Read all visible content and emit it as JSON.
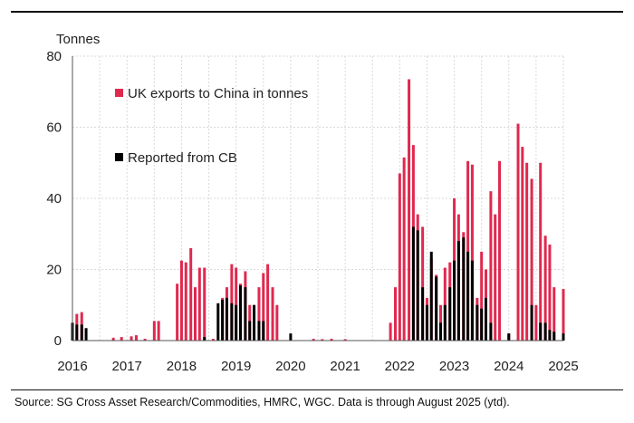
{
  "chart_data": {
    "type": "bar",
    "ylabel": "Tonnes",
    "ylim": [
      0,
      80
    ],
    "yticks": [
      "0",
      "20",
      "40",
      "60",
      "80"
    ],
    "xlim": [
      2016,
      2025
    ],
    "xticks": [
      "2016",
      "2017",
      "2018",
      "2019",
      "2020",
      "2021",
      "2022",
      "2023",
      "2024",
      "2025"
    ],
    "grid": true,
    "legend_position": "top-left",
    "series": [
      {
        "name": "UK exports to China in tonnes",
        "color": "#e0294f",
        "points": [
          {
            "x": 2016.08,
            "y": 7.5
          },
          {
            "x": 2016.17,
            "y": 8
          },
          {
            "x": 2016.75,
            "y": 0.8
          },
          {
            "x": 2016.9,
            "y": 1
          },
          {
            "x": 2017.08,
            "y": 1.2
          },
          {
            "x": 2017.17,
            "y": 1.5
          },
          {
            "x": 2017.33,
            "y": 0.5
          },
          {
            "x": 2017.5,
            "y": 5.5
          },
          {
            "x": 2017.58,
            "y": 5.5
          },
          {
            "x": 2017.92,
            "y": 16
          },
          {
            "x": 2018.0,
            "y": 22.5
          },
          {
            "x": 2018.08,
            "y": 22
          },
          {
            "x": 2018.17,
            "y": 26
          },
          {
            "x": 2018.25,
            "y": 15
          },
          {
            "x": 2018.33,
            "y": 20.5
          },
          {
            "x": 2018.42,
            "y": 20.5
          },
          {
            "x": 2018.58,
            "y": 0.5
          },
          {
            "x": 2018.75,
            "y": 12
          },
          {
            "x": 2018.83,
            "y": 15
          },
          {
            "x": 2018.92,
            "y": 21.5
          },
          {
            "x": 2019.0,
            "y": 20.5
          },
          {
            "x": 2019.08,
            "y": 16
          },
          {
            "x": 2019.17,
            "y": 19.5
          },
          {
            "x": 2019.25,
            "y": 10
          },
          {
            "x": 2019.33,
            "y": 10
          },
          {
            "x": 2019.42,
            "y": 15
          },
          {
            "x": 2019.5,
            "y": 19
          },
          {
            "x": 2019.58,
            "y": 21.5
          },
          {
            "x": 2019.67,
            "y": 15
          },
          {
            "x": 2019.75,
            "y": 10
          },
          {
            "x": 2020.42,
            "y": 0.5
          },
          {
            "x": 2020.58,
            "y": 0.4
          },
          {
            "x": 2020.75,
            "y": 0.5
          },
          {
            "x": 2021.0,
            "y": 0.4
          },
          {
            "x": 2021.83,
            "y": 5
          },
          {
            "x": 2021.92,
            "y": 15
          },
          {
            "x": 2022.0,
            "y": 47
          },
          {
            "x": 2022.08,
            "y": 51.5
          },
          {
            "x": 2022.17,
            "y": 73.5
          },
          {
            "x": 2022.25,
            "y": 55
          },
          {
            "x": 2022.33,
            "y": 35.5
          },
          {
            "x": 2022.42,
            "y": 32
          },
          {
            "x": 2022.5,
            "y": 12
          },
          {
            "x": 2022.58,
            "y": 23
          },
          {
            "x": 2022.67,
            "y": 18.5
          },
          {
            "x": 2022.75,
            "y": 10
          },
          {
            "x": 2022.83,
            "y": 20.5
          },
          {
            "x": 2022.92,
            "y": 22
          },
          {
            "x": 2023.0,
            "y": 40
          },
          {
            "x": 2023.08,
            "y": 35.5
          },
          {
            "x": 2023.17,
            "y": 30.5
          },
          {
            "x": 2023.25,
            "y": 50.5
          },
          {
            "x": 2023.33,
            "y": 49.5
          },
          {
            "x": 2023.42,
            "y": 12
          },
          {
            "x": 2023.5,
            "y": 25
          },
          {
            "x": 2023.58,
            "y": 20
          },
          {
            "x": 2023.67,
            "y": 42
          },
          {
            "x": 2023.75,
            "y": 35.5
          },
          {
            "x": 2023.83,
            "y": 50.5
          },
          {
            "x": 2024.0,
            "y": 2
          },
          {
            "x": 2024.17,
            "y": 61
          },
          {
            "x": 2024.25,
            "y": 54.5
          },
          {
            "x": 2024.33,
            "y": 50
          },
          {
            "x": 2024.42,
            "y": 45.5
          },
          {
            "x": 2024.5,
            "y": 10
          },
          {
            "x": 2024.58,
            "y": 50
          },
          {
            "x": 2024.67,
            "y": 29.5
          },
          {
            "x": 2024.75,
            "y": 27
          },
          {
            "x": 2024.83,
            "y": 15
          },
          {
            "x": 2025.0,
            "y": 14.5
          }
        ]
      },
      {
        "name": "Reported from CB",
        "color": "#000000",
        "points": [
          {
            "x": 2016.0,
            "y": 5
          },
          {
            "x": 2016.08,
            "y": 4.5
          },
          {
            "x": 2016.17,
            "y": 4.5
          },
          {
            "x": 2016.25,
            "y": 3.5
          },
          {
            "x": 2018.42,
            "y": 1
          },
          {
            "x": 2018.67,
            "y": 10.5
          },
          {
            "x": 2018.75,
            "y": 11.5
          },
          {
            "x": 2018.83,
            "y": 12
          },
          {
            "x": 2018.92,
            "y": 10.5
          },
          {
            "x": 2019.0,
            "y": 10
          },
          {
            "x": 2019.08,
            "y": 15.5
          },
          {
            "x": 2019.17,
            "y": 15
          },
          {
            "x": 2019.25,
            "y": 5.5
          },
          {
            "x": 2019.33,
            "y": 10
          },
          {
            "x": 2019.42,
            "y": 5.5
          },
          {
            "x": 2019.5,
            "y": 5.5
          },
          {
            "x": 2020.0,
            "y": 2
          },
          {
            "x": 2022.25,
            "y": 32
          },
          {
            "x": 2022.33,
            "y": 31
          },
          {
            "x": 2022.42,
            "y": 15
          },
          {
            "x": 2022.5,
            "y": 10
          },
          {
            "x": 2022.58,
            "y": 25
          },
          {
            "x": 2022.67,
            "y": 18
          },
          {
            "x": 2022.75,
            "y": 5
          },
          {
            "x": 2022.83,
            "y": 10
          },
          {
            "x": 2022.92,
            "y": 15
          },
          {
            "x": 2023.0,
            "y": 22.5
          },
          {
            "x": 2023.08,
            "y": 28
          },
          {
            "x": 2023.17,
            "y": 29
          },
          {
            "x": 2023.25,
            "y": 25
          },
          {
            "x": 2023.33,
            "y": 22.5
          },
          {
            "x": 2023.42,
            "y": 10
          },
          {
            "x": 2023.5,
            "y": 9
          },
          {
            "x": 2023.58,
            "y": 12
          },
          {
            "x": 2023.67,
            "y": 5
          },
          {
            "x": 2024.0,
            "y": 2
          },
          {
            "x": 2024.42,
            "y": 10
          },
          {
            "x": 2024.58,
            "y": 5
          },
          {
            "x": 2024.67,
            "y": 5
          },
          {
            "x": 2024.75,
            "y": 3
          },
          {
            "x": 2024.83,
            "y": 2.5
          },
          {
            "x": 2025.0,
            "y": 2
          }
        ]
      }
    ]
  },
  "source": "Source: SG Cross Asset Research/Commodities, HMRC, WGC.  Data is through August 2025 (ytd)."
}
